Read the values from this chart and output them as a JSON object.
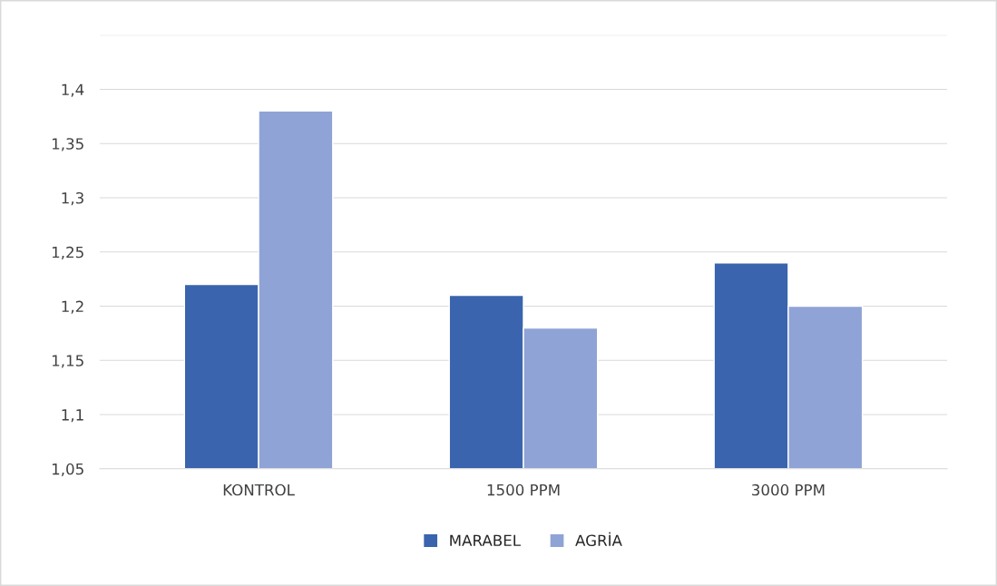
{
  "chart_data": {
    "type": "bar",
    "categories": [
      "KONTROL",
      "1500 PPM",
      "3000 PPM"
    ],
    "series": [
      {
        "name": "MARABEL",
        "color": "#3a64ad",
        "values": [
          1.22,
          1.21,
          1.24
        ]
      },
      {
        "name": "AGRİA",
        "color": "#8fa3d6",
        "values": [
          1.38,
          1.18,
          1.2
        ]
      }
    ],
    "ylim": [
      1.05,
      1.45
    ],
    "yticks": [
      {
        "value": 1.05,
        "label": "1,05"
      },
      {
        "value": 1.1,
        "label": "1,1"
      },
      {
        "value": 1.15,
        "label": "1,15"
      },
      {
        "value": 1.2,
        "label": "1,2"
      },
      {
        "value": 1.25,
        "label": "1,25"
      },
      {
        "value": 1.3,
        "label": "1,3"
      },
      {
        "value": 1.35,
        "label": "1,35"
      },
      {
        "value": 1.4,
        "label": "1,4"
      },
      {
        "value": 1.45,
        "label": null
      }
    ],
    "grid": "y",
    "legend": "bottom"
  }
}
